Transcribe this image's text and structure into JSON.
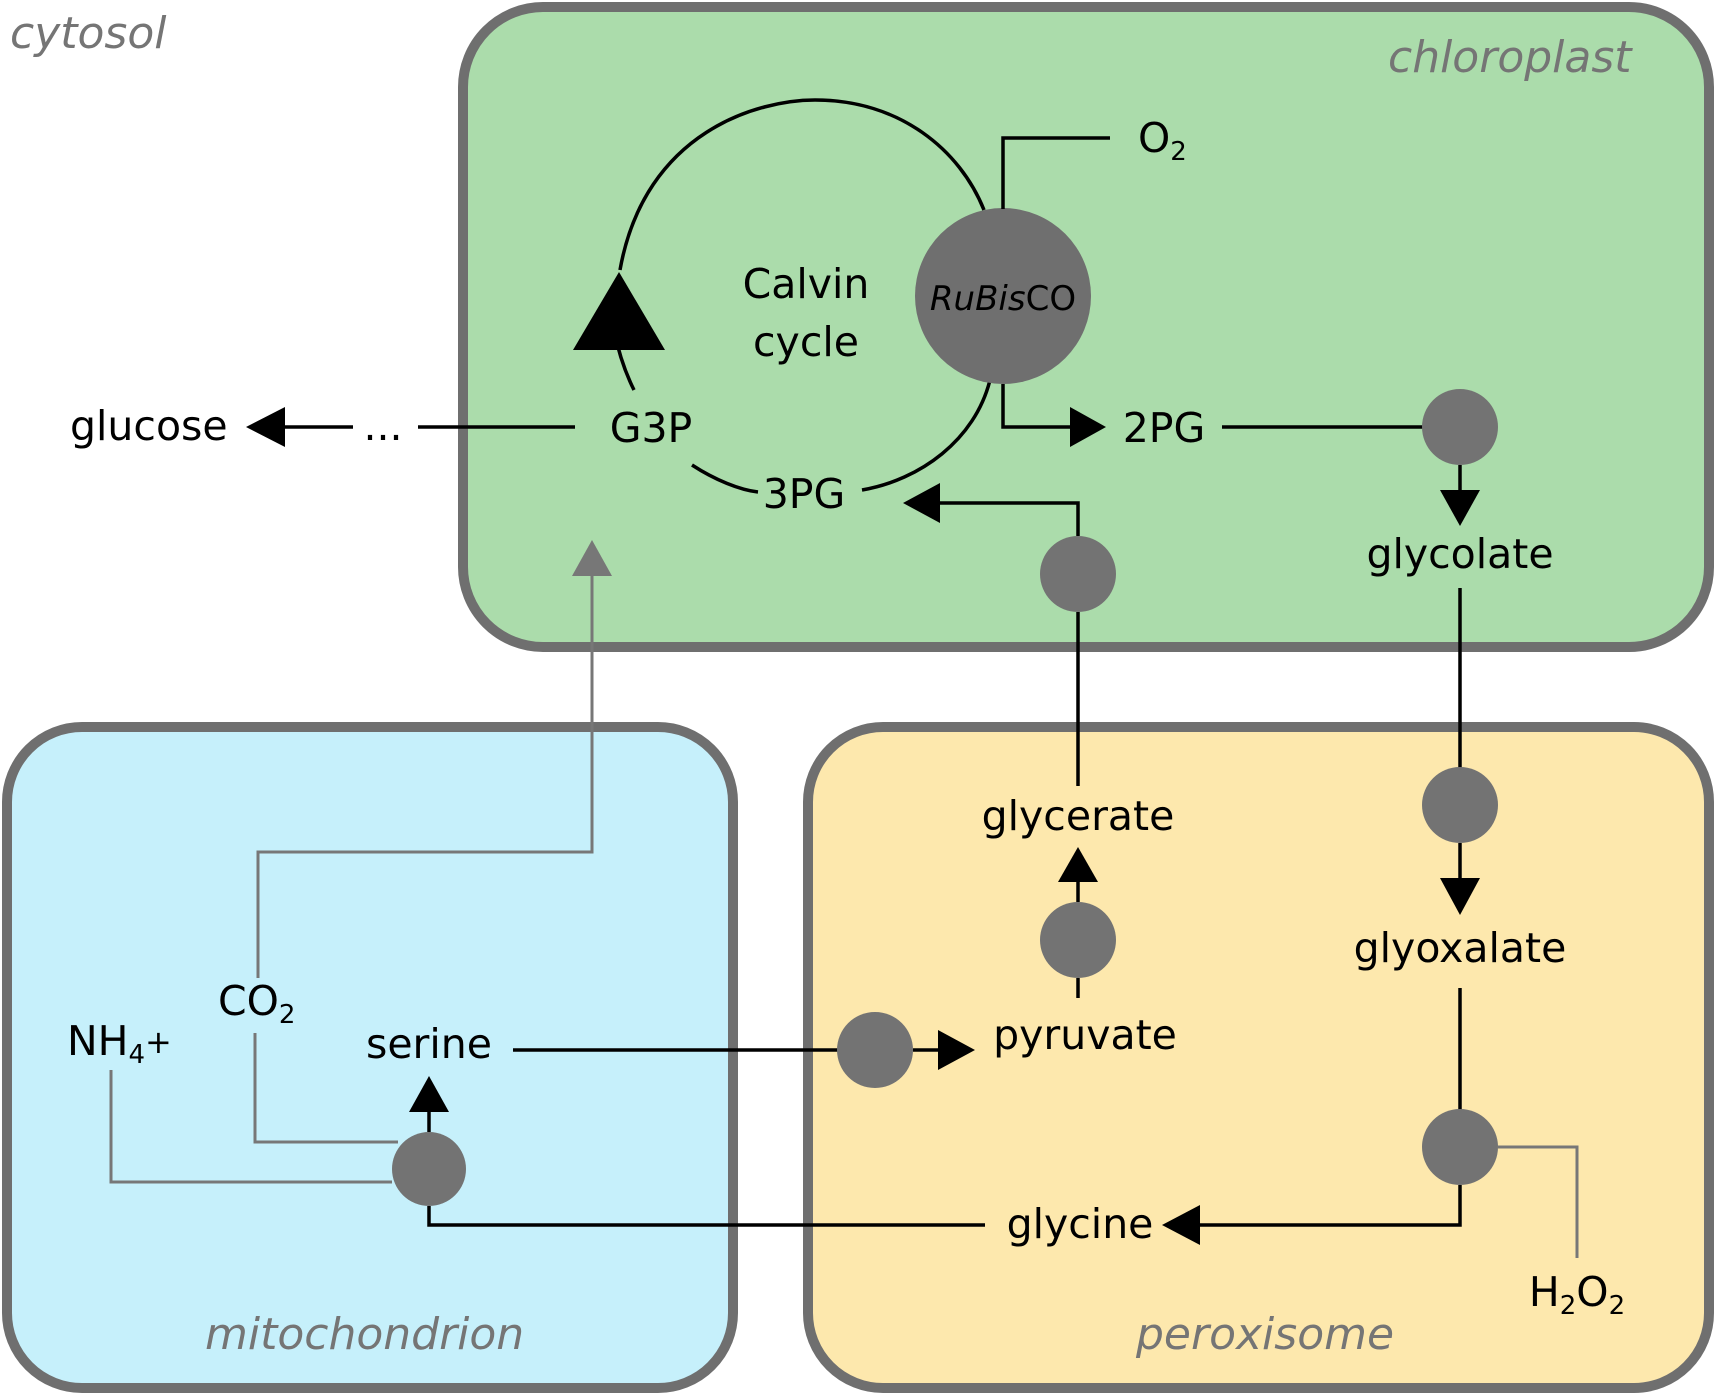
{
  "compartments": {
    "cytosol": "cytosol",
    "chloroplast": "chloroplast",
    "mitochondrion": "mitochondrion",
    "peroxisome": "peroxisome"
  },
  "cycle": {
    "line1": "Calvin",
    "line2": "cycle"
  },
  "enzyme": {
    "italic": "RuBis",
    "rest": "CO"
  },
  "molecules": {
    "o2": {
      "base": "O",
      "sub": "2"
    },
    "g3p": "G3P",
    "pg3": "3PG",
    "pg2": "2PG",
    "glucose": "glucose",
    "ellipsis": "...",
    "glycolate": "glycolate",
    "glycerate": "glycerate",
    "glyoxalate": "glyoxalate",
    "pyruvate": "pyruvate",
    "serine": "serine",
    "glycine": "glycine",
    "co2": {
      "base": "CO",
      "sub": "2"
    },
    "nh4": {
      "base": "NH",
      "sub": "4",
      "sup": "+"
    },
    "h2o2": {
      "h": "H",
      "sub1": "2",
      "o": "O",
      "sub2": "2"
    }
  },
  "colors": {
    "chloroplast_fill": "#abdcab",
    "mitochondrion_fill": "#c6f0fb",
    "peroxisome_fill": "#fde8ad",
    "border": "#6f6f6f",
    "enzyme_node": "#737373"
  }
}
